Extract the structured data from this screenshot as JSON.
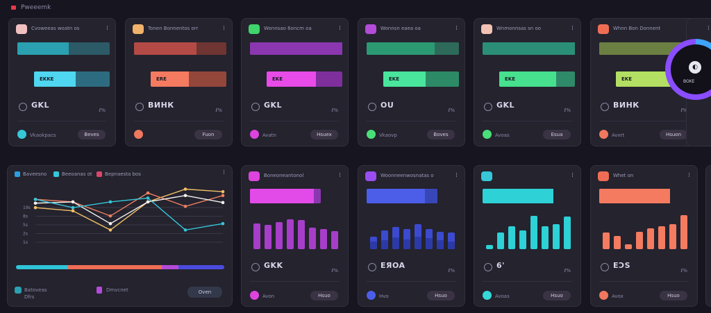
{
  "app": {
    "title": "Pweeemk"
  },
  "top_cards": [
    {
      "title": "Cvoweeas woatn os",
      "menu": "⁞",
      "icon_color": "#f0c0c0",
      "accent": "#2aa0b0",
      "accent_dark": "#2c5a66",
      "bar1_frac": 0.56,
      "bar2_color": "#4fd6f0",
      "bar2_dark": "#2d6c80",
      "bar2_frac": 0.55,
      "bar2_label": "EKKE",
      "metric": "GKL",
      "metric_side": "ℓ%",
      "dot_color": "#36c7d9",
      "footer": "Vkaokpacs",
      "pill": "Beves"
    },
    {
      "title": "Tonen Bonnentos orr",
      "menu": "⁞",
      "icon_color": "#f1b26b",
      "accent": "#b34a45",
      "accent_dark": "#6e3532",
      "bar1_frac": 0.68,
      "bar2_color": "#f47b60",
      "bar2_dark": "#93473a",
      "bar2_frac": 0.5,
      "bar2_label": "ERE",
      "metric": "ВИНК",
      "metric_side": "ℓ%",
      "dot_color": "#f0785e",
      "footer": "",
      "pill": "Fuon"
    },
    {
      "title": "Wonnsao 6oncm oa",
      "menu": "⁞",
      "icon_color": "#3fd46c",
      "accent": "#8a37b0",
      "accent_dark": "#8a37b0",
      "bar1_frac": 1.0,
      "bar2_color": "#e84be8",
      "bar2_dark": "#7e2f9c",
      "bar2_frac": 0.65,
      "bar2_label": "EKE",
      "metric": "GKL",
      "metric_side": "ℓ%",
      "dot_color": "#dd44dd",
      "footer": "Avatn",
      "pill": "Hsuex"
    },
    {
      "title": "Wonnsn eaea oa",
      "menu": "⁞",
      "icon_color": "#b44bd8",
      "accent": "#2b9a72",
      "accent_dark": "#2d6a5a",
      "bar1_frac": 0.74,
      "bar2_color": "#49e59c",
      "bar2_dark": "#2d8a66",
      "bar2_frac": 0.56,
      "bar2_label": "EKE",
      "metric": "OU",
      "metric_side": "ℓ%",
      "dot_color": "#49e07a",
      "footer": "Vkaovp",
      "pill": "Boves"
    },
    {
      "title": "Wnmonnsas sn oo",
      "menu": "⁞",
      "icon_color": "#f2c2b4",
      "accent": "#2b8f78",
      "accent_dark": "#2b8f78",
      "bar1_frac": 1.0,
      "bar2_color": "#46e08e",
      "bar2_dark": "#2f8a6a",
      "bar2_frac": 0.75,
      "bar2_label": "EKE",
      "metric": "GKL",
      "metric_side": "ℓ%",
      "dot_color": "#49e07a",
      "footer": "Avoas",
      "pill": "Esua"
    },
    {
      "title": "Whnn Bon Donnent",
      "menu": "⁞",
      "icon_color": "#f06d55",
      "accent": "#6b7f42",
      "accent_dark": "#4b5f3a",
      "bar1_frac": 1.0,
      "bar2_color": "#b3e062",
      "bar2_dark": "#7f9a44",
      "bar2_frac": 0.78,
      "bar2_label": "EKE",
      "metric": "ВИНК",
      "metric_side": "ℓ%",
      "dot_color": "#f0785e",
      "footer": "Avxrt",
      "pill": "Hsuon"
    }
  ],
  "overlay": {
    "label": "BOKE"
  },
  "line_chart": {
    "legend": [
      {
        "label": "Baveesno",
        "color": "#2aa0e0"
      },
      {
        "label": "Beeoanas ot",
        "color": "#36c7d9"
      },
      {
        "label": "Bepnaesta bos",
        "color": "#d9476a"
      }
    ],
    "y_tick_labels": [
      "19s",
      "8s",
      "5s",
      "2s",
      "1s"
    ],
    "footer_left": "Batoveas",
    "footer_left_sub": "Dfrs",
    "footer_mid": "Dmvcnet",
    "pill": "Oven",
    "chart_data": {
      "type": "line",
      "x": [
        0,
        1,
        2,
        3,
        4,
        5
      ],
      "series": [
        {
          "values": [
            65,
            60,
            30,
            74,
            94,
            90
          ],
          "color": "#f2c067"
        },
        {
          "values": [
            78,
            74,
            52,
            88,
            67,
            84
          ],
          "color": "#f08060"
        },
        {
          "values": [
            72,
            74,
            40,
            74,
            84,
            73
          ],
          "color": "#f5f2f0"
        },
        {
          "values": [
            78,
            65,
            74,
            80,
            30,
            40
          ],
          "color": "#36c7d9"
        }
      ],
      "ylim": [
        0,
        100
      ]
    }
  },
  "bar_cards": [
    {
      "title": "Boneoneantonol",
      "menu": "⁞",
      "icon_color": "#dd44dd",
      "header_bar": "#e24be8",
      "header_dark": "#8a37b0",
      "header_frac": 0.9,
      "metric": "GKK",
      "metric_side": "ℓ%",
      "dot_color": "#dd44dd",
      "footer": "Avon",
      "pill": "Hsuo",
      "chart_data": {
        "type": "bar",
        "series": [
          {
            "values": [
              62,
              58,
              65,
              72,
              70,
              52,
              48,
              44
            ],
            "color": "#a63ec9"
          }
        ]
      }
    },
    {
      "title": "Woonneenwosnatas o",
      "menu": "⁞",
      "icon_color": "#9a4df0",
      "header_bar": "#4c5ee8",
      "header_dark": "#3747b8",
      "header_frac": 0.82,
      "metric": "EЯOA",
      "metric_side": "ℓ%",
      "dot_color": "#4c5ee8",
      "footer": "Hvo",
      "pill": "Hsuo",
      "chart_data": {
        "type": "bar",
        "series": [
          {
            "values": [
              30,
              45,
              54,
              49,
              60,
              48,
              42,
              40
            ],
            "color": "#3c4ad0"
          },
          {
            "values": [
              18,
              22,
              28,
              24,
              30,
              26,
              22,
              18
            ],
            "color": "#2c3aa8"
          }
        ]
      }
    },
    {
      "title": "",
      "menu": "⁞",
      "icon_color": "#36c7d9",
      "header_bar": "#2dd1d6",
      "header_dark": "#2aa8ad",
      "header_frac": 1.0,
      "metric": "6'",
      "metric_side": "ℓ%",
      "dot_color": "#36d9d9",
      "footer": "Avoas",
      "pill": "Hsuo",
      "chart_data": {
        "type": "bar",
        "series": [
          {
            "values": [
              10,
              40,
              55,
              45,
              80,
              55,
              60,
              78
            ],
            "color": "#2dd1d6"
          }
        ]
      }
    },
    {
      "title": "Whet on",
      "menu": "⁞",
      "icon_color": "#f06d55",
      "header_bar": "#f47b60",
      "header_dark": "#c05a47",
      "header_frac": 1.0,
      "metric": "EƆS",
      "metric_side": "ℓ%",
      "dot_color": "#f0785e",
      "footer": "Avox",
      "pill": "Hsuo",
      "chart_data": {
        "type": "bar",
        "series": [
          {
            "values": [
              40,
              32,
              12,
              42,
              50,
              55,
              60,
              82
            ],
            "color": "#f47b60"
          }
        ]
      }
    }
  ],
  "edge_peek": {
    "menu": "⁞"
  }
}
